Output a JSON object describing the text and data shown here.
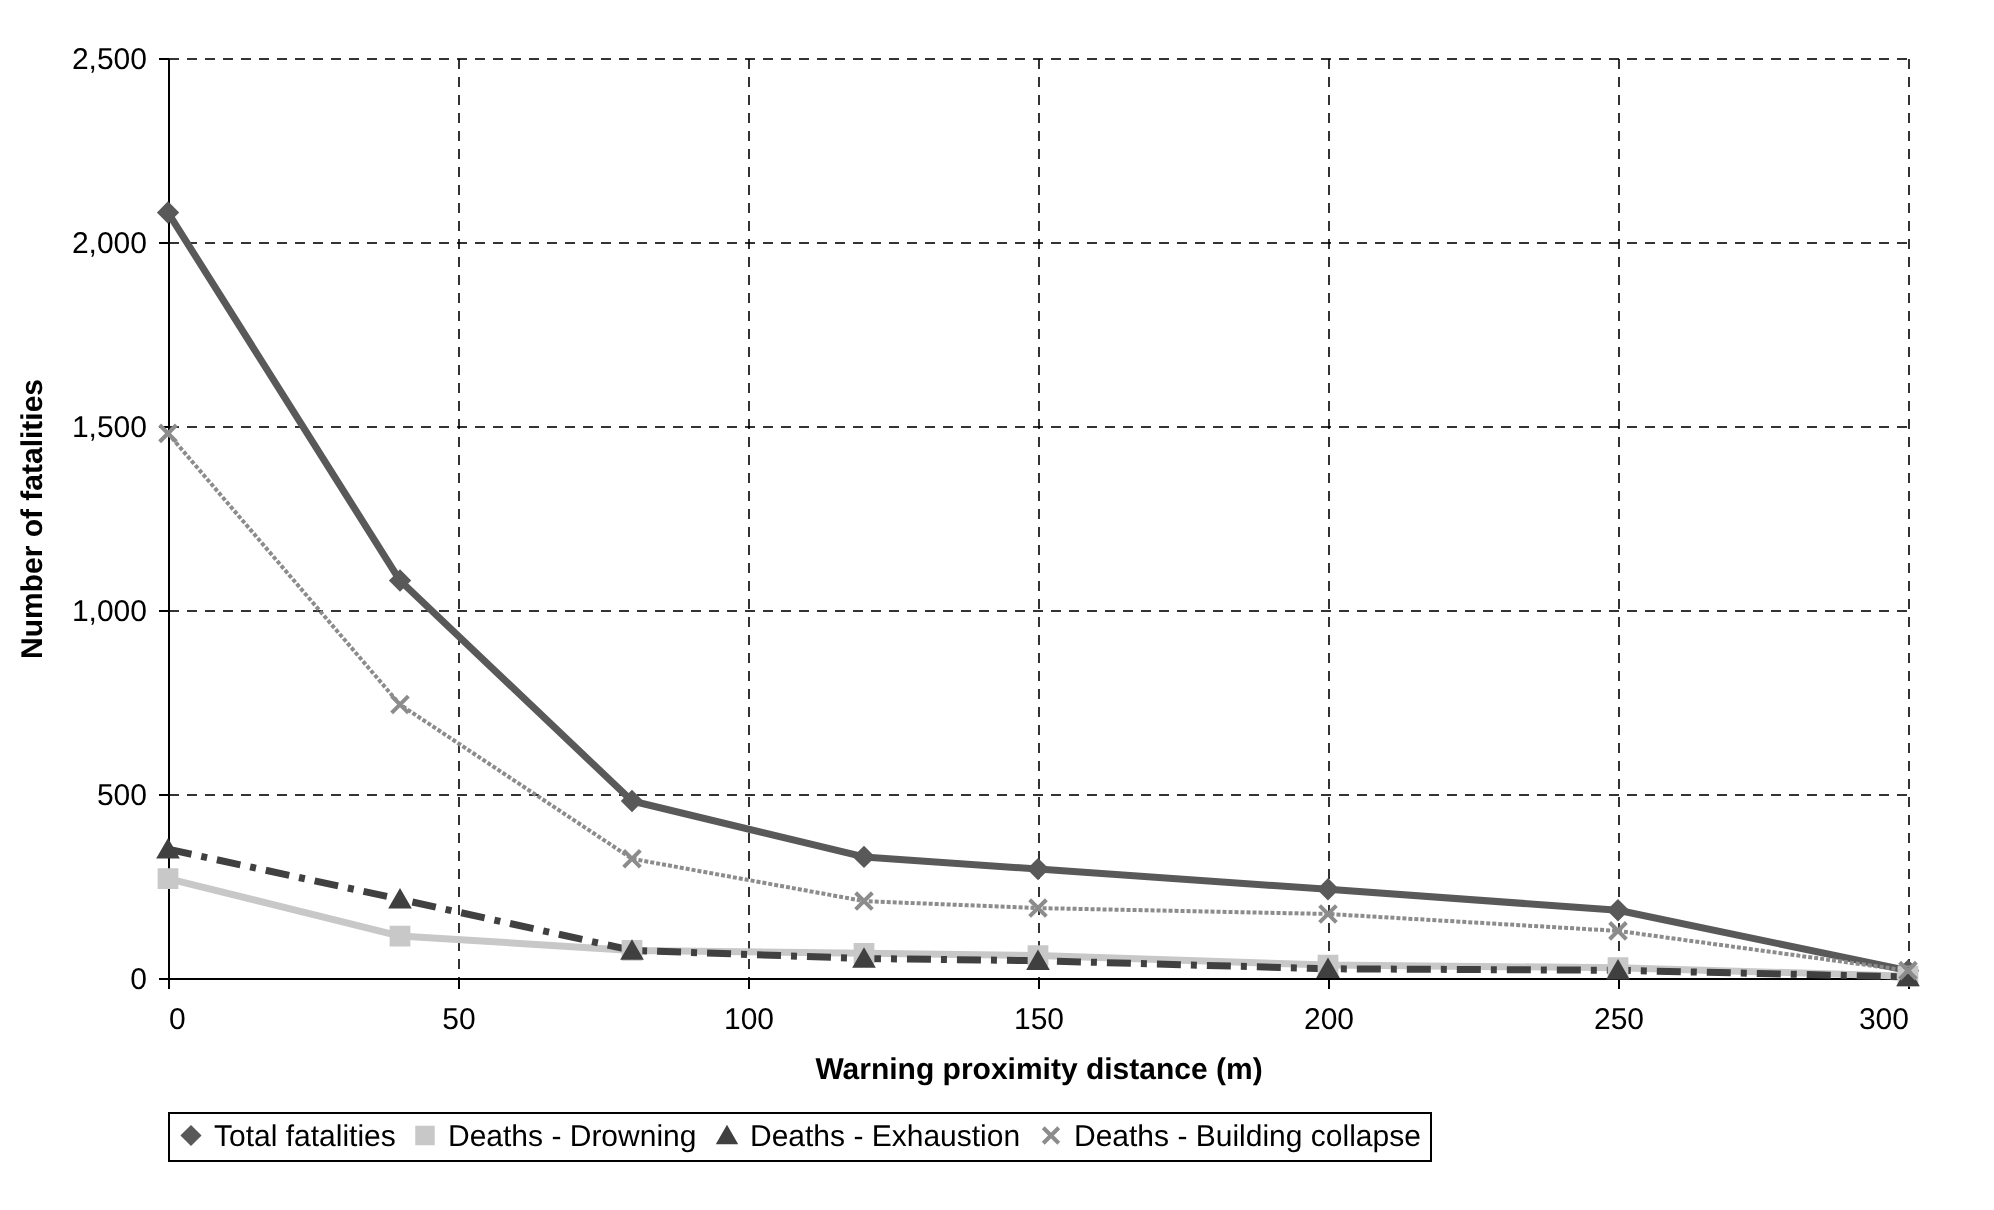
{
  "chart_data": {
    "type": "line",
    "xlabel": "Warning proximity distance (m)",
    "ylabel": "Number of fatalities",
    "x": [
      0,
      40,
      80,
      120,
      150,
      200,
      250,
      300
    ],
    "series": [
      {
        "name": "Total fatalities",
        "color": "#595959",
        "marker": "diamond",
        "line_style": "solid",
        "values": [
          2080,
          1080,
          481,
          329,
          296,
          241,
          184,
          20
        ]
      },
      {
        "name": "Deaths - Drowning",
        "color": "#c8c8c8",
        "marker": "square",
        "line_style": "solid",
        "values": [
          270,
          114,
          75,
          67,
          61,
          35,
          28,
          5
        ]
      },
      {
        "name": "Deaths - Exhaustion",
        "color": "#404040",
        "marker": "triangle",
        "line_style": "dashed",
        "values": [
          350,
          214,
          75,
          53,
          47,
          25,
          21,
          3
        ]
      },
      {
        "name": "Deaths - Building collapse",
        "color": "#8c8c8c",
        "marker": "cross",
        "line_style": "dotted",
        "values": [
          1480,
          743,
          324,
          209,
          190,
          174,
          128,
          20
        ]
      }
    ],
    "xlim": [
      0,
      300
    ],
    "xticks": [
      0,
      50,
      100,
      150,
      200,
      250,
      300
    ],
    "ylim": [
      0,
      2500
    ],
    "yticks": [
      0,
      500,
      {
        "value": 1000,
        "label": "1,000"
      },
      {
        "value": 1500,
        "label": "1,500"
      },
      {
        "value": 2000,
        "label": "2,000"
      },
      {
        "value": 2500,
        "label": "2,500"
      }
    ],
    "grid": true,
    "legend": "bottom"
  }
}
